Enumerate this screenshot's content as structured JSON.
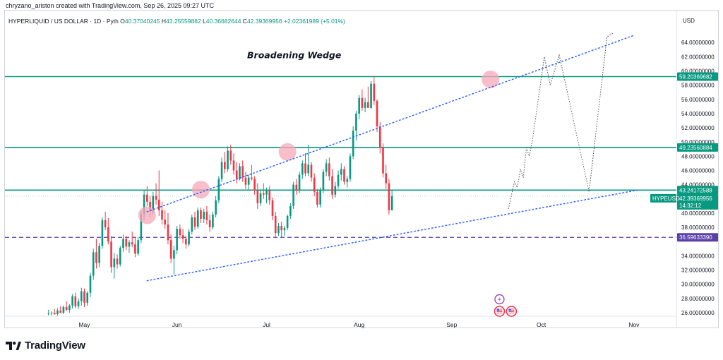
{
  "header": {
    "credit": "chryzano_ariston created with TradingView.com, Sep 26, 2025 09:27 UTC",
    "symbol": "HYPERLIQUID / US DOLLAR · 1D · Pyth",
    "open_label": "O",
    "open": "40.37040245",
    "high_label": "H",
    "high": "43.25559882",
    "low_label": "L",
    "low": "40.36682644",
    "close_label": "C",
    "close": "42.39369956",
    "change": "+2.02361989 (+5.01%)",
    "currency": "USD"
  },
  "branding": {
    "name": "TradingView"
  },
  "colors": {
    "up": "#089981",
    "down": "#f23645",
    "level": "#089981",
    "support": "#5b3fa8",
    "trend": "#2962ff",
    "highlight": "#f7a8b8"
  },
  "chart_data": {
    "type": "candlestick",
    "title": "HYPERLIQUID / US DOLLAR · 1D · Pyth",
    "annotation": "Broadening Wedge",
    "ylim": [
      25.5,
      66.5
    ],
    "y_ticks": [
      {
        "value": 26,
        "label": "26.00000000"
      },
      {
        "value": 28,
        "label": "28.00000000"
      },
      {
        "value": 30,
        "label": "30.00000000"
      },
      {
        "value": 32,
        "label": "32.00000000"
      },
      {
        "value": 34,
        "label": "34.00000000"
      },
      {
        "value": 38,
        "label": "38.00000000"
      },
      {
        "value": 40,
        "label": "40.00000000"
      },
      {
        "value": 44,
        "label": "44.00000000"
      },
      {
        "value": 46,
        "label": "46.00000000"
      },
      {
        "value": 48,
        "label": "48.00000000"
      },
      {
        "value": 50,
        "label": "50.00000000"
      },
      {
        "value": 52,
        "label": "52.00000000"
      },
      {
        "value": 54,
        "label": "54.00000000"
      },
      {
        "value": 56,
        "label": "56.00000000"
      },
      {
        "value": 58,
        "label": "58.00000000"
      },
      {
        "value": 60,
        "label": "60.00000000"
      },
      {
        "value": 62,
        "label": "62.00000000"
      },
      {
        "value": 64,
        "label": "64.00000000"
      }
    ],
    "x_ticks": [
      {
        "day": 12,
        "label": "May"
      },
      {
        "day": 43,
        "label": "Jun"
      },
      {
        "day": 73,
        "label": "Jul"
      },
      {
        "day": 104,
        "label": "Aug"
      },
      {
        "day": 135,
        "label": "Sep"
      },
      {
        "day": 165,
        "label": "Oct"
      },
      {
        "day": 196,
        "label": "Nov"
      }
    ],
    "xlim": [
      -12,
      210
    ],
    "levels": [
      {
        "value": 59.20369682,
        "label": "59.20369682",
        "style": "solid"
      },
      {
        "value": 49.23560884,
        "label": "49.23560884",
        "style": "solid"
      },
      {
        "value": 43.24172588,
        "label": "43.24172588",
        "style": "solid"
      },
      {
        "value": 36.5963339,
        "label": "36.59633390",
        "style": "dashed"
      }
    ],
    "last_price": {
      "symbol": "HYPEUSD",
      "value": 42.39369956,
      "label": "42.39369956",
      "countdown": "14:32:12"
    },
    "trendlines": [
      {
        "name": "upper",
        "from": [
          33,
          40.2
        ],
        "to": [
          196,
          65.0
        ]
      },
      {
        "name": "lower",
        "from": [
          33,
          30.5
        ],
        "to": [
          198,
          43.3
        ]
      }
    ],
    "projection": [
      [
        154,
        40.6
      ],
      [
        156,
        44.4
      ],
      [
        157,
        43.6
      ],
      [
        158,
        46.2
      ],
      [
        159,
        45.0
      ],
      [
        160,
        49.2
      ],
      [
        161,
        48.0
      ],
      [
        162,
        50.2
      ],
      [
        166,
        62.0
      ],
      [
        168,
        58.0
      ],
      [
        171,
        62.2
      ],
      [
        174,
        56.5
      ],
      [
        181,
        43.0
      ],
      [
        187,
        64.8
      ],
      [
        189,
        65.3
      ]
    ],
    "highlights": [
      {
        "day": 33,
        "price": 39.7
      },
      {
        "day": 51,
        "price": 43.3
      },
      {
        "day": 80,
        "price": 48.6
      },
      {
        "day": 148,
        "price": 58.8
      }
    ],
    "event_icons": [
      {
        "day": 151,
        "type": "flash"
      },
      {
        "day": 151,
        "type": "us-flag"
      },
      {
        "day": 155,
        "type": "us-flag"
      }
    ],
    "candles": [
      {
        "o": 25.9,
        "h": 26.4,
        "l": 25.6,
        "c": 25.9
      },
      {
        "o": 25.9,
        "h": 26.2,
        "l": 25.6,
        "c": 26.0
      },
      {
        "o": 26.0,
        "h": 26.5,
        "l": 25.7,
        "c": 25.8
      },
      {
        "o": 25.8,
        "h": 26.6,
        "l": 25.6,
        "c": 26.3
      },
      {
        "o": 26.3,
        "h": 26.9,
        "l": 25.9,
        "c": 26.0
      },
      {
        "o": 26.0,
        "h": 27.0,
        "l": 25.8,
        "c": 26.8
      },
      {
        "o": 26.8,
        "h": 27.6,
        "l": 26.2,
        "c": 26.4
      },
      {
        "o": 26.4,
        "h": 27.2,
        "l": 26.0,
        "c": 27.0
      },
      {
        "o": 27.0,
        "h": 28.6,
        "l": 26.6,
        "c": 28.3
      },
      {
        "o": 28.3,
        "h": 28.8,
        "l": 26.6,
        "c": 26.9
      },
      {
        "o": 26.9,
        "h": 28.0,
        "l": 26.5,
        "c": 27.6
      },
      {
        "o": 27.6,
        "h": 29.5,
        "l": 27.0,
        "c": 29.0
      },
      {
        "o": 29.0,
        "h": 29.4,
        "l": 26.8,
        "c": 27.4
      },
      {
        "o": 27.4,
        "h": 29.0,
        "l": 27.0,
        "c": 28.8
      },
      {
        "o": 28.8,
        "h": 31.6,
        "l": 28.2,
        "c": 31.2
      },
      {
        "o": 31.2,
        "h": 35.0,
        "l": 30.6,
        "c": 34.5
      },
      {
        "o": 34.5,
        "h": 36.4,
        "l": 32.2,
        "c": 33.0
      },
      {
        "o": 33.0,
        "h": 35.8,
        "l": 32.4,
        "c": 35.4
      },
      {
        "o": 35.4,
        "h": 39.4,
        "l": 35.0,
        "c": 39.0
      },
      {
        "o": 39.0,
        "h": 40.2,
        "l": 37.6,
        "c": 38.0
      },
      {
        "o": 38.0,
        "h": 39.3,
        "l": 35.6,
        "c": 36.0
      },
      {
        "o": 36.0,
        "h": 36.8,
        "l": 31.6,
        "c": 32.4
      },
      {
        "o": 32.4,
        "h": 34.4,
        "l": 30.8,
        "c": 33.6
      },
      {
        "o": 33.6,
        "h": 34.2,
        "l": 32.2,
        "c": 32.8
      },
      {
        "o": 32.8,
        "h": 35.4,
        "l": 32.5,
        "c": 35.1
      },
      {
        "o": 35.1,
        "h": 37.0,
        "l": 34.6,
        "c": 36.4
      },
      {
        "o": 36.4,
        "h": 36.8,
        "l": 34.8,
        "c": 35.3
      },
      {
        "o": 35.3,
        "h": 36.2,
        "l": 34.4,
        "c": 35.9
      },
      {
        "o": 35.9,
        "h": 37.4,
        "l": 35.2,
        "c": 35.6
      },
      {
        "o": 35.6,
        "h": 36.6,
        "l": 33.8,
        "c": 34.3
      },
      {
        "o": 34.3,
        "h": 36.6,
        "l": 34.0,
        "c": 36.2
      },
      {
        "o": 36.2,
        "h": 40.4,
        "l": 35.8,
        "c": 39.8
      },
      {
        "o": 39.8,
        "h": 43.2,
        "l": 39.0,
        "c": 42.6
      },
      {
        "o": 42.6,
        "h": 43.8,
        "l": 41.0,
        "c": 41.6
      },
      {
        "o": 41.6,
        "h": 42.4,
        "l": 39.4,
        "c": 40.2
      },
      {
        "o": 40.2,
        "h": 43.0,
        "l": 39.8,
        "c": 42.4
      },
      {
        "o": 42.4,
        "h": 44.2,
        "l": 41.2,
        "c": 41.9
      },
      {
        "o": 41.9,
        "h": 46.0,
        "l": 39.6,
        "c": 40.4
      },
      {
        "o": 40.4,
        "h": 41.6,
        "l": 38.4,
        "c": 39.1
      },
      {
        "o": 39.1,
        "h": 40.4,
        "l": 37.8,
        "c": 38.4
      },
      {
        "o": 38.4,
        "h": 40.0,
        "l": 35.6,
        "c": 36.2
      },
      {
        "o": 36.2,
        "h": 37.0,
        "l": 33.0,
        "c": 33.6
      },
      {
        "o": 33.6,
        "h": 35.4,
        "l": 31.4,
        "c": 34.8
      },
      {
        "o": 34.8,
        "h": 38.2,
        "l": 34.2,
        "c": 37.8
      },
      {
        "o": 37.8,
        "h": 38.4,
        "l": 36.4,
        "c": 36.9
      },
      {
        "o": 36.9,
        "h": 37.8,
        "l": 35.8,
        "c": 36.4
      },
      {
        "o": 36.4,
        "h": 36.8,
        "l": 35.0,
        "c": 35.6
      },
      {
        "o": 35.6,
        "h": 37.8,
        "l": 35.3,
        "c": 37.4
      },
      {
        "o": 37.4,
        "h": 39.8,
        "l": 37.0,
        "c": 39.4
      },
      {
        "o": 39.4,
        "h": 40.2,
        "l": 37.6,
        "c": 38.1
      },
      {
        "o": 38.1,
        "h": 40.8,
        "l": 37.8,
        "c": 40.4
      },
      {
        "o": 40.4,
        "h": 40.8,
        "l": 38.6,
        "c": 39.2
      },
      {
        "o": 39.2,
        "h": 40.6,
        "l": 38.6,
        "c": 40.2
      },
      {
        "o": 40.2,
        "h": 41.0,
        "l": 38.4,
        "c": 39.0
      },
      {
        "o": 39.0,
        "h": 39.8,
        "l": 37.4,
        "c": 38.0
      },
      {
        "o": 38.0,
        "h": 40.2,
        "l": 37.7,
        "c": 39.8
      },
      {
        "o": 39.8,
        "h": 42.4,
        "l": 39.4,
        "c": 41.8
      },
      {
        "o": 41.8,
        "h": 45.2,
        "l": 41.4,
        "c": 44.8
      },
      {
        "o": 44.8,
        "h": 47.8,
        "l": 44.4,
        "c": 47.2
      },
      {
        "o": 47.2,
        "h": 48.6,
        "l": 45.6,
        "c": 46.2
      },
      {
        "o": 46.2,
        "h": 49.4,
        "l": 45.8,
        "c": 48.8
      },
      {
        "o": 48.8,
        "h": 49.6,
        "l": 46.8,
        "c": 47.4
      },
      {
        "o": 47.4,
        "h": 48.4,
        "l": 45.4,
        "c": 46.0
      },
      {
        "o": 46.0,
        "h": 47.2,
        "l": 44.2,
        "c": 44.8
      },
      {
        "o": 44.8,
        "h": 47.0,
        "l": 44.6,
        "c": 46.6
      },
      {
        "o": 46.6,
        "h": 47.4,
        "l": 44.4,
        "c": 45.0
      },
      {
        "o": 45.0,
        "h": 45.8,
        "l": 43.4,
        "c": 44.0
      },
      {
        "o": 44.0,
        "h": 45.4,
        "l": 43.2,
        "c": 45.0
      },
      {
        "o": 45.0,
        "h": 46.8,
        "l": 44.6,
        "c": 44.8
      },
      {
        "o": 44.8,
        "h": 45.2,
        "l": 42.6,
        "c": 43.2
      },
      {
        "o": 43.2,
        "h": 44.2,
        "l": 40.6,
        "c": 41.4
      },
      {
        "o": 41.4,
        "h": 43.4,
        "l": 41.0,
        "c": 42.8
      },
      {
        "o": 42.8,
        "h": 44.2,
        "l": 42.0,
        "c": 42.6
      },
      {
        "o": 42.6,
        "h": 43.6,
        "l": 41.4,
        "c": 43.2
      },
      {
        "o": 43.2,
        "h": 43.8,
        "l": 41.2,
        "c": 41.8
      },
      {
        "o": 41.8,
        "h": 42.2,
        "l": 39.0,
        "c": 39.6
      },
      {
        "o": 39.6,
        "h": 40.2,
        "l": 36.6,
        "c": 37.2
      },
      {
        "o": 37.2,
        "h": 38.6,
        "l": 36.8,
        "c": 38.2
      },
      {
        "o": 38.2,
        "h": 38.8,
        "l": 36.6,
        "c": 37.6
      },
      {
        "o": 37.6,
        "h": 38.2,
        "l": 36.8,
        "c": 37.9
      },
      {
        "o": 37.9,
        "h": 39.8,
        "l": 37.6,
        "c": 39.6
      },
      {
        "o": 39.6,
        "h": 41.4,
        "l": 39.2,
        "c": 41.0
      },
      {
        "o": 41.0,
        "h": 44.4,
        "l": 40.6,
        "c": 44.0
      },
      {
        "o": 44.0,
        "h": 44.8,
        "l": 42.6,
        "c": 43.2
      },
      {
        "o": 43.2,
        "h": 45.8,
        "l": 42.8,
        "c": 45.4
      },
      {
        "o": 45.4,
        "h": 47.4,
        "l": 44.8,
        "c": 47.0
      },
      {
        "o": 47.0,
        "h": 48.4,
        "l": 45.2,
        "c": 45.6
      },
      {
        "o": 45.6,
        "h": 49.6,
        "l": 45.2,
        "c": 46.8
      },
      {
        "o": 46.8,
        "h": 47.2,
        "l": 44.4,
        "c": 45.0
      },
      {
        "o": 45.0,
        "h": 45.6,
        "l": 42.4,
        "c": 43.0
      },
      {
        "o": 43.0,
        "h": 43.4,
        "l": 40.8,
        "c": 41.2
      },
      {
        "o": 41.2,
        "h": 43.6,
        "l": 40.8,
        "c": 43.2
      },
      {
        "o": 43.2,
        "h": 46.2,
        "l": 42.8,
        "c": 45.8
      },
      {
        "o": 45.8,
        "h": 47.6,
        "l": 45.2,
        "c": 47.0
      },
      {
        "o": 47.0,
        "h": 47.8,
        "l": 44.6,
        "c": 45.2
      },
      {
        "o": 45.2,
        "h": 46.2,
        "l": 42.0,
        "c": 42.6
      },
      {
        "o": 42.6,
        "h": 44.4,
        "l": 42.2,
        "c": 43.8
      },
      {
        "o": 43.8,
        "h": 46.0,
        "l": 43.4,
        "c": 45.4
      },
      {
        "o": 45.4,
        "h": 47.0,
        "l": 44.6,
        "c": 46.2
      },
      {
        "o": 46.2,
        "h": 46.6,
        "l": 44.0,
        "c": 44.4
      },
      {
        "o": 44.4,
        "h": 45.2,
        "l": 43.6,
        "c": 44.8
      },
      {
        "o": 44.8,
        "h": 48.4,
        "l": 44.4,
        "c": 48.0
      },
      {
        "o": 48.0,
        "h": 52.2,
        "l": 47.6,
        "c": 51.6
      },
      {
        "o": 51.6,
        "h": 54.4,
        "l": 50.2,
        "c": 54.0
      },
      {
        "o": 54.0,
        "h": 56.6,
        "l": 53.2,
        "c": 56.2
      },
      {
        "o": 56.2,
        "h": 57.4,
        "l": 54.4,
        "c": 54.8
      },
      {
        "o": 54.8,
        "h": 56.2,
        "l": 54.2,
        "c": 55.6
      },
      {
        "o": 55.6,
        "h": 57.8,
        "l": 54.8,
        "c": 54.8
      },
      {
        "o": 54.8,
        "h": 58.6,
        "l": 54.6,
        "c": 58.2
      },
      {
        "o": 58.2,
        "h": 59.2,
        "l": 55.2,
        "c": 55.8
      },
      {
        "o": 55.8,
        "h": 56.0,
        "l": 51.4,
        "c": 52.2
      },
      {
        "o": 52.2,
        "h": 52.8,
        "l": 48.4,
        "c": 49.2
      },
      {
        "o": 49.2,
        "h": 49.8,
        "l": 45.0,
        "c": 45.6
      },
      {
        "o": 45.6,
        "h": 46.8,
        "l": 43.4,
        "c": 44.2
      },
      {
        "o": 44.2,
        "h": 44.8,
        "l": 39.8,
        "c": 40.4
      },
      {
        "o": 40.4,
        "h": 43.3,
        "l": 40.4,
        "c": 42.4
      }
    ]
  }
}
